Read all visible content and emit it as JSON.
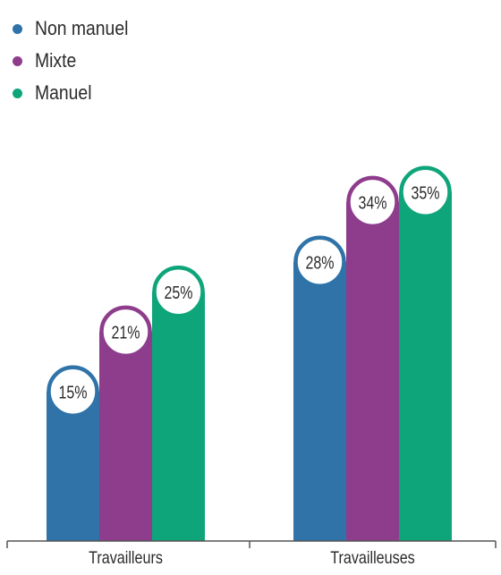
{
  "chart_data": {
    "type": "bar",
    "categories": [
      "Travailleurs",
      "Travailleuses"
    ],
    "series": [
      {
        "name": "Non manuel",
        "values": [
          15,
          28
        ],
        "labels": [
          "15%",
          "28%"
        ],
        "color": "#2f73a8"
      },
      {
        "name": "Mixte",
        "values": [
          21,
          34
        ],
        "labels": [
          "21%",
          "34%"
        ],
        "color": "#8e3d8c"
      },
      {
        "name": "Manuel",
        "values": [
          25,
          35
        ],
        "labels": [
          "25%",
          "35%"
        ],
        "color": "#0ea57a"
      }
    ],
    "ylim": [
      0,
      40
    ],
    "grid": false,
    "legend_position": "top-left"
  }
}
